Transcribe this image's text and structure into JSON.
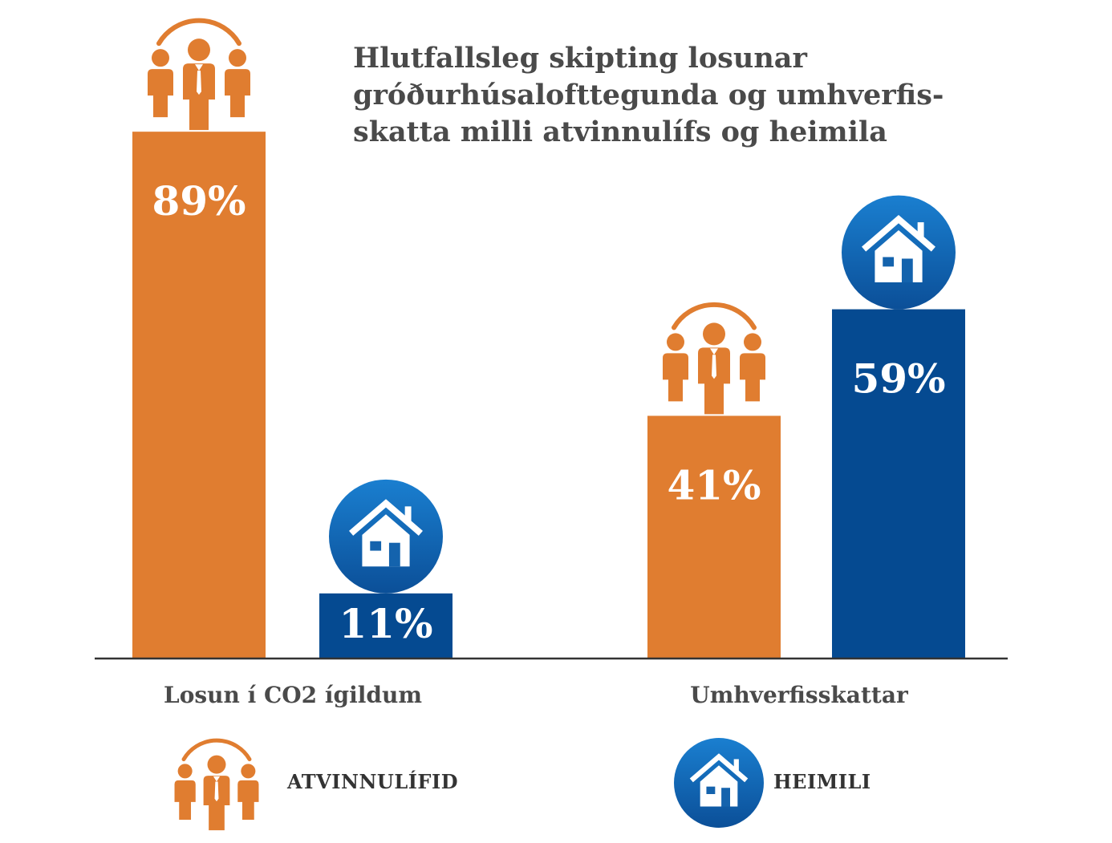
{
  "title_lines": [
    "Hlutfallsleg skipting losunar",
    "gróðurhúsalofttegunda og umhverfis-",
    "skatta milli atvinnulífs og heimila"
  ],
  "colors": {
    "atvinnulif": "#e07d30",
    "heimili": "#054a91",
    "heimili_circle": "#1067b3",
    "text": "#4a4a4a"
  },
  "chart_data": {
    "type": "bar",
    "categories": [
      "Losun í CO2 ígildum",
      "Umhverfisskattar"
    ],
    "series": [
      {
        "name": "ATVINNULÍFID",
        "icon": "people-icon",
        "values": [
          89,
          41
        ],
        "labels": [
          "89%",
          "41%"
        ]
      },
      {
        "name": "HEIMILI",
        "icon": "house-icon",
        "values": [
          11,
          59
        ],
        "labels": [
          "11%",
          "59%"
        ]
      }
    ],
    "ylim": [
      0,
      100
    ],
    "grid": false,
    "legend": "bottom"
  },
  "legend": [
    {
      "label": "ATVINNULÍFID",
      "icon": "people-icon"
    },
    {
      "label": "HEIMILI",
      "icon": "house-icon"
    }
  ]
}
